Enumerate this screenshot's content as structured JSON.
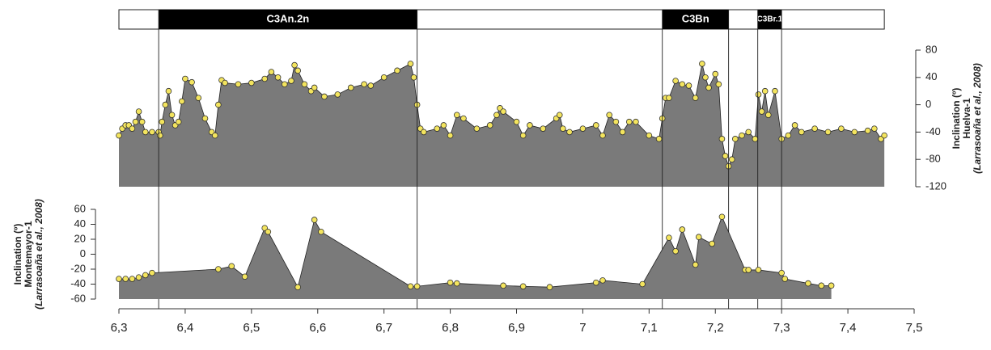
{
  "chart_data": [
    {
      "type": "area",
      "color": "#7a7a7a",
      "marker_color": "#f3e45e",
      "ylabel": [
        "Inclination (º)",
        "Huelva-1",
        "(Larrasoaña et al., 2008)"
      ],
      "y_axis_side": "right",
      "ylim": [
        -120,
        80
      ],
      "yticks": [
        -120,
        -80,
        -40,
        0,
        40,
        80
      ],
      "xlim": [
        6.3,
        7.5
      ],
      "chrons": [
        {
          "label": "C3An.2n",
          "start": 6.36,
          "end": 6.75
        },
        {
          "label": "C3Bn",
          "start": 7.12,
          "end": 7.22
        },
        {
          "label": "C3Br.1",
          "start": 7.264,
          "end": 7.3
        }
      ],
      "x": [
        6.3,
        6.305,
        6.31,
        6.315,
        6.32,
        6.325,
        6.33,
        6.335,
        6.34,
        6.35,
        6.36,
        6.362,
        6.365,
        6.37,
        6.375,
        6.38,
        6.385,
        6.39,
        6.395,
        6.4,
        6.41,
        6.42,
        6.43,
        6.44,
        6.445,
        6.45,
        6.455,
        6.46,
        6.48,
        6.5,
        6.52,
        6.53,
        6.54,
        6.55,
        6.56,
        6.565,
        6.57,
        6.58,
        6.59,
        6.595,
        6.61,
        6.63,
        6.65,
        6.67,
        6.68,
        6.7,
        6.72,
        6.74,
        6.745,
        6.75,
        6.755,
        6.76,
        6.78,
        6.79,
        6.8,
        6.81,
        6.82,
        6.84,
        6.86,
        6.87,
        6.875,
        6.88,
        6.9,
        6.91,
        6.92,
        6.94,
        6.96,
        6.965,
        6.97,
        6.98,
        7.0,
        7.02,
        7.03,
        7.04,
        7.05,
        7.06,
        7.07,
        7.08,
        7.1,
        7.115,
        7.12,
        7.125,
        7.13,
        7.14,
        7.15,
        7.16,
        7.17,
        7.18,
        7.185,
        7.19,
        7.2,
        7.205,
        7.21,
        7.215,
        7.22,
        7.225,
        7.23,
        7.24,
        7.25,
        7.26,
        7.265,
        7.27,
        7.275,
        7.28,
        7.29,
        7.3,
        7.31,
        7.32,
        7.33,
        7.35,
        7.37,
        7.39,
        7.41,
        7.43,
        7.44,
        7.45,
        7.455
      ],
      "values": [
        -45,
        -35,
        -30,
        -30,
        -35,
        -25,
        -10,
        -25,
        -40,
        -40,
        -40,
        -45,
        -25,
        0,
        20,
        -15,
        -30,
        -25,
        5,
        38,
        33,
        10,
        -20,
        -40,
        -45,
        0,
        36,
        32,
        30,
        32,
        38,
        48,
        40,
        30,
        35,
        58,
        50,
        30,
        20,
        25,
        12,
        15,
        25,
        30,
        28,
        40,
        50,
        60,
        40,
        0,
        -35,
        -40,
        -35,
        -30,
        -45,
        -15,
        -20,
        -35,
        -30,
        -15,
        -5,
        -10,
        -25,
        -45,
        -30,
        -35,
        -20,
        -15,
        -35,
        -40,
        -35,
        -30,
        -45,
        -15,
        -25,
        -40,
        -25,
        -25,
        -45,
        -50,
        -20,
        10,
        10,
        35,
        30,
        28,
        10,
        60,
        40,
        25,
        45,
        30,
        -50,
        -75,
        -90,
        -80,
        -50,
        -45,
        -40,
        -50,
        15,
        -10,
        20,
        -15,
        20,
        -50,
        -45,
        -30,
        -40,
        -35,
        -40,
        -35,
        -40,
        -38,
        -35,
        -50,
        -45
      ]
    },
    {
      "type": "area",
      "color": "#7a7a7a",
      "marker_color": "#f3e45e",
      "ylabel": [
        "Inclination (º)",
        "Montemayor-1",
        "(Larrasoaña et al., 2008)"
      ],
      "y_axis_side": "left",
      "ylim": [
        -60,
        60
      ],
      "yticks": [
        -60,
        -40,
        -20,
        0,
        20,
        40,
        60
      ],
      "xlim": [
        6.3,
        7.5
      ],
      "xticks": [
        {
          "value": 6.3,
          "label": "6,3"
        },
        {
          "value": 6.4,
          "label": "6,4"
        },
        {
          "value": 6.5,
          "label": "6,5"
        },
        {
          "value": 6.6,
          "label": "6,6"
        },
        {
          "value": 6.7,
          "label": "6,7"
        },
        {
          "value": 6.8,
          "label": "6,8"
        },
        {
          "value": 6.9,
          "label": "6,9"
        },
        7,
        {
          "value": 7.1,
          "label": "7,1"
        },
        {
          "value": 7.2,
          "label": "7,2"
        },
        {
          "value": 7.3,
          "label": "7,3"
        },
        {
          "value": 7.4,
          "label": "7,4"
        },
        {
          "value": 7.5,
          "label": "7,5"
        }
      ],
      "x": [
        6.3,
        6.31,
        6.32,
        6.33,
        6.34,
        6.35,
        6.45,
        6.47,
        6.49,
        6.52,
        6.525,
        6.57,
        6.595,
        6.605,
        6.74,
        6.75,
        6.8,
        6.81,
        6.88,
        6.91,
        6.95,
        7.02,
        7.03,
        7.09,
        7.13,
        7.14,
        7.15,
        7.17,
        7.175,
        7.195,
        7.21,
        7.245,
        7.25,
        7.265,
        7.3,
        7.305,
        7.34,
        7.36,
        7.375
      ],
      "values": [
        -33,
        -33,
        -33,
        -31,
        -28,
        -25,
        -20,
        -16,
        -30,
        35,
        30,
        -44,
        46,
        30,
        -43,
        -43,
        -38,
        -39,
        -42,
        -43,
        -44,
        -38,
        -35,
        -40,
        22,
        4,
        33,
        -14,
        23,
        14,
        50,
        -21,
        -21,
        -21,
        -25,
        -33,
        -39,
        -42,
        -42
      ]
    }
  ]
}
